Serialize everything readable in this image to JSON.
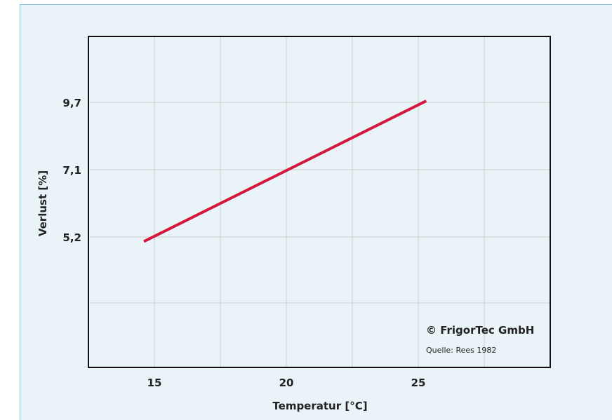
{
  "chart_data": {
    "type": "line",
    "xlabel": "Temperatur [°C]",
    "ylabel": "Verlust [%]",
    "x_ticks": [
      {
        "value": 15,
        "label": "15"
      },
      {
        "value": 20,
        "label": "20"
      },
      {
        "value": 25,
        "label": "25"
      }
    ],
    "y_ticks": [
      {
        "value": 5.2,
        "label": "5,2"
      },
      {
        "value": 7.1,
        "label": "7,1"
      },
      {
        "value": 9.7,
        "label": "9,7"
      }
    ],
    "xlim": [
      12.5,
      30
    ],
    "grid": true,
    "series": [
      {
        "color": "#d4183d",
        "points": [
          {
            "x": 14.6,
            "y": 5.05
          },
          {
            "x": 25.3,
            "y": 9.75
          }
        ]
      }
    ]
  },
  "credits": {
    "copyright": "© FrigorTec GmbH",
    "source": "Quelle: Rees 1982"
  }
}
